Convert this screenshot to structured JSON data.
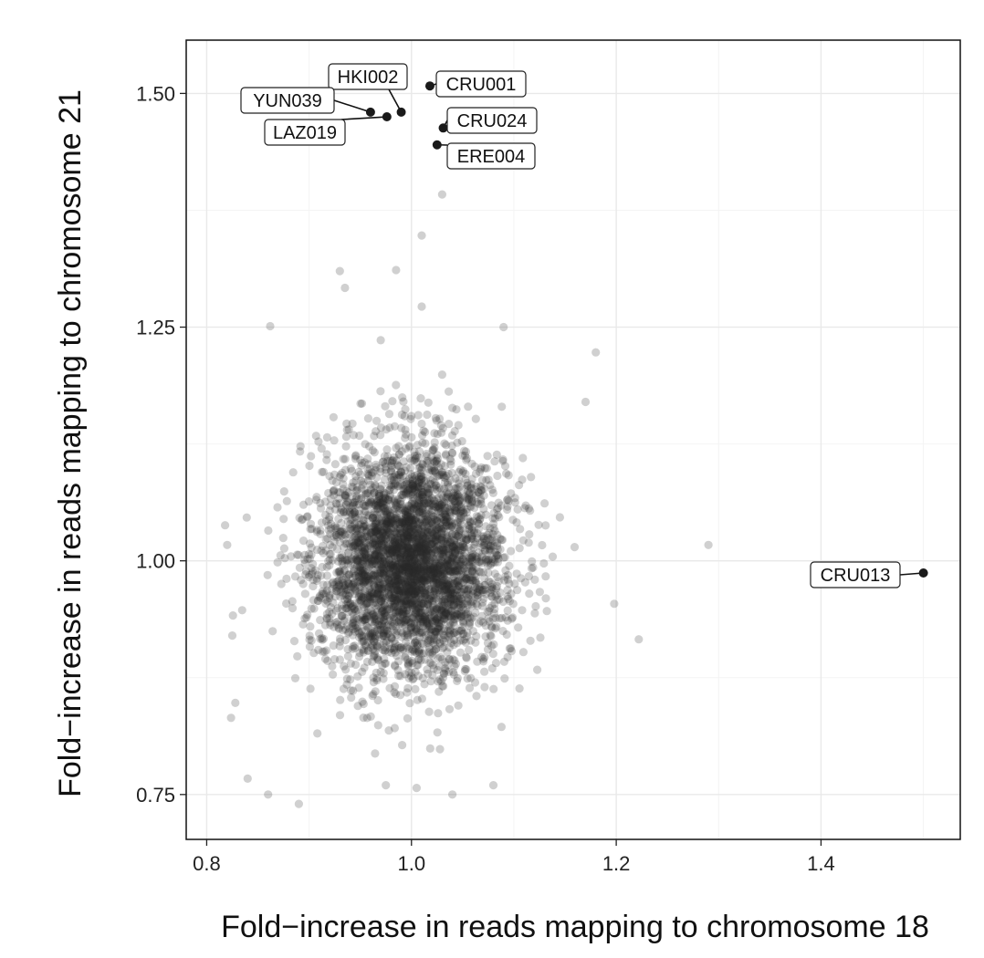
{
  "chart_data": {
    "type": "scatter",
    "xlabel": "Fold−increase in reads mapping to chromosome 18",
    "ylabel": "Fold−increase in reads mapping to chromosome 21",
    "xlim": [
      0.78,
      1.536
    ],
    "ylim": [
      0.702,
      1.557
    ],
    "x_ticks": [
      0.8,
      1.0,
      1.2,
      1.4
    ],
    "x_tick_labels": [
      "0.8",
      "1.0",
      "1.2",
      "1.4"
    ],
    "y_ticks": [
      0.75,
      1.0,
      1.25,
      1.5
    ],
    "y_tick_labels": [
      "0.75",
      "1.00",
      "1.25",
      "1.50"
    ],
    "grid": true,
    "background_points": {
      "description_count": 4000,
      "center": [
        1.0,
        1.0
      ],
      "sd": [
        0.045,
        0.06
      ],
      "color": "#2b2b2b",
      "opacity": 0.22
    },
    "extra_points": [
      [
        1.03,
        1.392
      ],
      [
        1.01,
        1.348
      ],
      [
        0.985,
        1.311
      ],
      [
        0.93,
        1.31
      ],
      [
        0.935,
        1.292
      ],
      [
        1.01,
        1.272
      ],
      [
        0.862,
        1.251
      ],
      [
        1.09,
        1.25
      ],
      [
        1.18,
        1.223
      ],
      [
        0.97,
        1.236
      ],
      [
        1.17,
        1.17
      ],
      [
        1.29,
        1.017
      ],
      [
        1.222,
        0.916
      ],
      [
        1.198,
        0.954
      ],
      [
        0.84,
        0.767
      ],
      [
        0.86,
        0.75
      ],
      [
        0.89,
        0.74
      ],
      [
        1.04,
        0.75
      ],
      [
        1.005,
        0.757
      ],
      [
        0.975,
        0.76
      ],
      [
        1.08,
        0.76
      ],
      [
        0.818,
        1.038
      ],
      [
        0.82,
        1.017
      ],
      [
        0.825,
        0.92
      ],
      [
        0.828,
        0.848
      ]
    ],
    "highlighted_points": [
      {
        "label": "CRU001",
        "x": 1.018,
        "y": 1.508
      },
      {
        "label": "HKI002",
        "x": 0.99,
        "y": 1.48
      },
      {
        "label": "YUN039",
        "x": 0.96,
        "y": 1.48
      },
      {
        "label": "LAZ019",
        "x": 0.976,
        "y": 1.475
      },
      {
        "label": "CRU024",
        "x": 1.031,
        "y": 1.463
      },
      {
        "label": "ERE004",
        "x": 1.025,
        "y": 1.445
      },
      {
        "label": "CRU013",
        "x": 1.5,
        "y": 0.987
      }
    ],
    "colors": {
      "panel_border": "#111111",
      "grid_major": "#e9e9e9",
      "grid_minor": "#f4f4f4",
      "point": "#222222",
      "highlight": "#1a1a1a"
    }
  }
}
